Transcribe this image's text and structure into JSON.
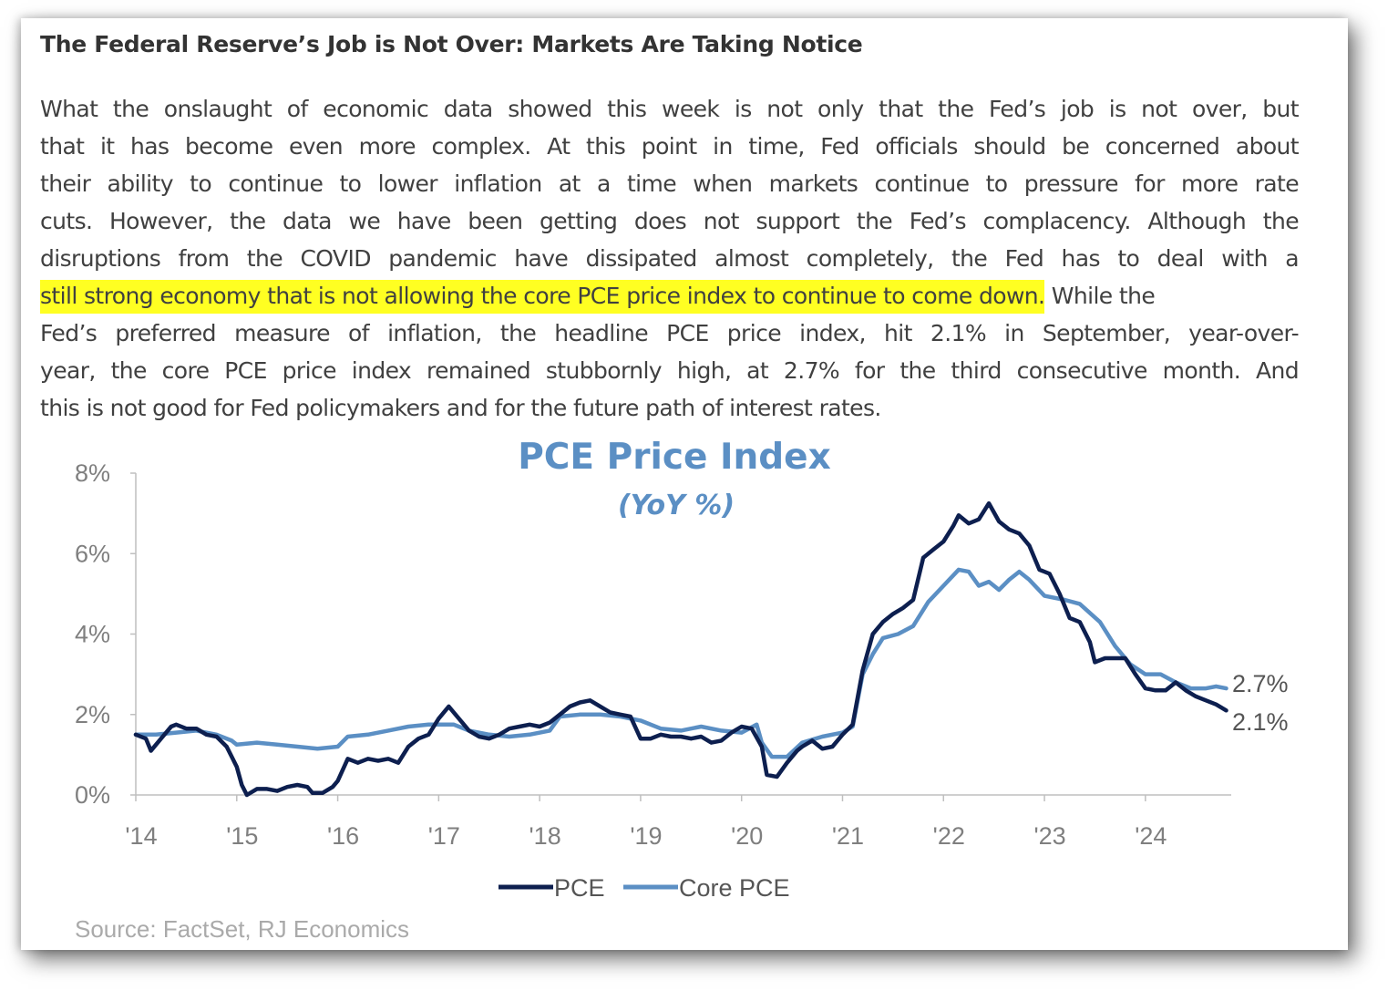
{
  "article": {
    "heading": "The Federal Reserve’s Job is Not Over: Markets Are Taking Notice",
    "lines": [
      "What the onslaught of economic data showed this week is not only that the Fed’s job is not over, but",
      "that it has become even more complex. At this point in time, Fed officials should be concerned about",
      "their ability to continue to lower inflation at a time when markets continue to pressure for more rate",
      "cuts. However, the data we have been getting does not support the Fed’s complacency. Although the",
      "disruptions from the COVID pandemic have dissipated almost completely, the Fed has to deal with a"
    ],
    "highlighted_text": "still strong economy that is not allowing the core PCE price index to continue to come down.",
    "highlighted_tail": " While the",
    "lines_after": [
      "Fed’s preferred measure of inflation, the headline PCE price index, hit 2.1% in September, year-over-",
      "year, the core PCE price index remained stubbornly high, at 2.7% for the third consecutive month. And",
      "this is not good for Fed policymakers and for the future path of interest rates."
    ],
    "highlight_color": "#ffff22"
  },
  "chart_data": {
    "type": "line",
    "title": "PCE Price Index",
    "subtitle": "(YoY %)",
    "xlabel": "",
    "ylabel": "",
    "x_tick_labels": [
      "'14",
      "'15",
      "'16",
      "'17",
      "'18",
      "'19",
      "'20",
      "'21",
      "'22",
      "'23",
      "'24"
    ],
    "x_range": [
      2014.0,
      2024.85
    ],
    "y_ticks": [
      0,
      2,
      4,
      6,
      8
    ],
    "y_tick_labels": [
      "0%",
      "2%",
      "4%",
      "6%",
      "8%"
    ],
    "ylim": [
      0,
      8
    ],
    "grid": false,
    "legend_position": "bottom-center",
    "source": "Source: FactSet, RJ Economics",
    "end_labels": {
      "core": "2.7%",
      "headline": "2.1%"
    },
    "series": [
      {
        "name": "PCE",
        "color": "#0d1f4f",
        "points": [
          [
            2014.0,
            1.5
          ],
          [
            2014.1,
            1.4
          ],
          [
            2014.15,
            1.1
          ],
          [
            2014.25,
            1.4
          ],
          [
            2014.35,
            1.7
          ],
          [
            2014.4,
            1.75
          ],
          [
            2014.5,
            1.65
          ],
          [
            2014.6,
            1.65
          ],
          [
            2014.7,
            1.5
          ],
          [
            2014.8,
            1.45
          ],
          [
            2014.9,
            1.2
          ],
          [
            2015.0,
            0.7
          ],
          [
            2015.05,
            0.25
          ],
          [
            2015.1,
            0.0
          ],
          [
            2015.2,
            0.15
          ],
          [
            2015.3,
            0.15
          ],
          [
            2015.4,
            0.1
          ],
          [
            2015.5,
            0.2
          ],
          [
            2015.6,
            0.25
          ],
          [
            2015.7,
            0.2
          ],
          [
            2015.75,
            0.05
          ],
          [
            2015.85,
            0.05
          ],
          [
            2015.95,
            0.2
          ],
          [
            2016.0,
            0.35
          ],
          [
            2016.1,
            0.9
          ],
          [
            2016.2,
            0.8
          ],
          [
            2016.3,
            0.9
          ],
          [
            2016.4,
            0.85
          ],
          [
            2016.5,
            0.9
          ],
          [
            2016.6,
            0.8
          ],
          [
            2016.7,
            1.2
          ],
          [
            2016.8,
            1.4
          ],
          [
            2016.9,
            1.5
          ],
          [
            2017.0,
            1.9
          ],
          [
            2017.1,
            2.2
          ],
          [
            2017.2,
            1.9
          ],
          [
            2017.3,
            1.6
          ],
          [
            2017.4,
            1.45
          ],
          [
            2017.5,
            1.4
          ],
          [
            2017.6,
            1.5
          ],
          [
            2017.7,
            1.65
          ],
          [
            2017.8,
            1.7
          ],
          [
            2017.9,
            1.75
          ],
          [
            2018.0,
            1.7
          ],
          [
            2018.1,
            1.8
          ],
          [
            2018.2,
            2.0
          ],
          [
            2018.3,
            2.2
          ],
          [
            2018.4,
            2.3
          ],
          [
            2018.5,
            2.35
          ],
          [
            2018.6,
            2.2
          ],
          [
            2018.7,
            2.05
          ],
          [
            2018.8,
            2.0
          ],
          [
            2018.9,
            1.95
          ],
          [
            2019.0,
            1.4
          ],
          [
            2019.1,
            1.4
          ],
          [
            2019.2,
            1.5
          ],
          [
            2019.3,
            1.45
          ],
          [
            2019.4,
            1.45
          ],
          [
            2019.5,
            1.4
          ],
          [
            2019.6,
            1.45
          ],
          [
            2019.7,
            1.3
          ],
          [
            2019.8,
            1.35
          ],
          [
            2019.9,
            1.55
          ],
          [
            2020.0,
            1.7
          ],
          [
            2020.1,
            1.65
          ],
          [
            2020.2,
            1.2
          ],
          [
            2020.25,
            0.5
          ],
          [
            2020.35,
            0.45
          ],
          [
            2020.45,
            0.8
          ],
          [
            2020.55,
            1.1
          ],
          [
            2020.6,
            1.2
          ],
          [
            2020.7,
            1.35
          ],
          [
            2020.8,
            1.15
          ],
          [
            2020.9,
            1.2
          ],
          [
            2021.0,
            1.5
          ],
          [
            2021.1,
            1.75
          ],
          [
            2021.2,
            3.1
          ],
          [
            2021.3,
            4.0
          ],
          [
            2021.4,
            4.3
          ],
          [
            2021.5,
            4.5
          ],
          [
            2021.6,
            4.65
          ],
          [
            2021.7,
            4.85
          ],
          [
            2021.8,
            5.9
          ],
          [
            2021.9,
            6.1
          ],
          [
            2022.0,
            6.3
          ],
          [
            2022.1,
            6.7
          ],
          [
            2022.15,
            6.95
          ],
          [
            2022.25,
            6.75
          ],
          [
            2022.35,
            6.85
          ],
          [
            2022.45,
            7.25
          ],
          [
            2022.55,
            6.8
          ],
          [
            2022.65,
            6.6
          ],
          [
            2022.75,
            6.5
          ],
          [
            2022.85,
            6.2
          ],
          [
            2022.95,
            5.6
          ],
          [
            2023.05,
            5.5
          ],
          [
            2023.15,
            5.0
          ],
          [
            2023.25,
            4.4
          ],
          [
            2023.35,
            4.3
          ],
          [
            2023.45,
            3.8
          ],
          [
            2023.5,
            3.3
          ],
          [
            2023.6,
            3.4
          ],
          [
            2023.7,
            3.4
          ],
          [
            2023.8,
            3.4
          ],
          [
            2023.9,
            3.0
          ],
          [
            2024.0,
            2.65
          ],
          [
            2024.1,
            2.6
          ],
          [
            2024.2,
            2.6
          ],
          [
            2024.3,
            2.8
          ],
          [
            2024.4,
            2.6
          ],
          [
            2024.5,
            2.45
          ],
          [
            2024.6,
            2.35
          ],
          [
            2024.7,
            2.25
          ],
          [
            2024.8,
            2.1
          ]
        ]
      },
      {
        "name": "Core PCE",
        "color": "#5b8fc4",
        "points": [
          [
            2014.0,
            1.5
          ],
          [
            2014.2,
            1.5
          ],
          [
            2014.4,
            1.55
          ],
          [
            2014.6,
            1.6
          ],
          [
            2014.8,
            1.5
          ],
          [
            2014.95,
            1.35
          ],
          [
            2015.0,
            1.25
          ],
          [
            2015.2,
            1.3
          ],
          [
            2015.4,
            1.25
          ],
          [
            2015.6,
            1.2
          ],
          [
            2015.8,
            1.15
          ],
          [
            2016.0,
            1.2
          ],
          [
            2016.1,
            1.45
          ],
          [
            2016.3,
            1.5
          ],
          [
            2016.5,
            1.6
          ],
          [
            2016.7,
            1.7
          ],
          [
            2016.9,
            1.75
          ],
          [
            2017.0,
            1.75
          ],
          [
            2017.15,
            1.75
          ],
          [
            2017.3,
            1.6
          ],
          [
            2017.5,
            1.5
          ],
          [
            2017.7,
            1.45
          ],
          [
            2017.9,
            1.5
          ],
          [
            2018.1,
            1.6
          ],
          [
            2018.2,
            1.95
          ],
          [
            2018.4,
            2.0
          ],
          [
            2018.6,
            2.0
          ],
          [
            2018.8,
            1.95
          ],
          [
            2019.0,
            1.85
          ],
          [
            2019.2,
            1.65
          ],
          [
            2019.4,
            1.6
          ],
          [
            2019.6,
            1.7
          ],
          [
            2019.8,
            1.6
          ],
          [
            2020.0,
            1.55
          ],
          [
            2020.15,
            1.75
          ],
          [
            2020.2,
            1.3
          ],
          [
            2020.3,
            0.95
          ],
          [
            2020.45,
            0.95
          ],
          [
            2020.6,
            1.3
          ],
          [
            2020.8,
            1.45
          ],
          [
            2021.0,
            1.55
          ],
          [
            2021.1,
            1.7
          ],
          [
            2021.2,
            3.0
          ],
          [
            2021.3,
            3.5
          ],
          [
            2021.4,
            3.9
          ],
          [
            2021.55,
            4.0
          ],
          [
            2021.7,
            4.2
          ],
          [
            2021.85,
            4.8
          ],
          [
            2022.0,
            5.2
          ],
          [
            2022.15,
            5.6
          ],
          [
            2022.25,
            5.55
          ],
          [
            2022.35,
            5.2
          ],
          [
            2022.45,
            5.3
          ],
          [
            2022.55,
            5.1
          ],
          [
            2022.65,
            5.35
          ],
          [
            2022.75,
            5.55
          ],
          [
            2022.85,
            5.35
          ],
          [
            2023.0,
            4.95
          ],
          [
            2023.2,
            4.85
          ],
          [
            2023.35,
            4.75
          ],
          [
            2023.55,
            4.3
          ],
          [
            2023.7,
            3.7
          ],
          [
            2023.85,
            3.25
          ],
          [
            2024.0,
            3.0
          ],
          [
            2024.15,
            3.0
          ],
          [
            2024.3,
            2.8
          ],
          [
            2024.45,
            2.65
          ],
          [
            2024.6,
            2.65
          ],
          [
            2024.7,
            2.7
          ],
          [
            2024.8,
            2.65
          ]
        ]
      }
    ]
  }
}
